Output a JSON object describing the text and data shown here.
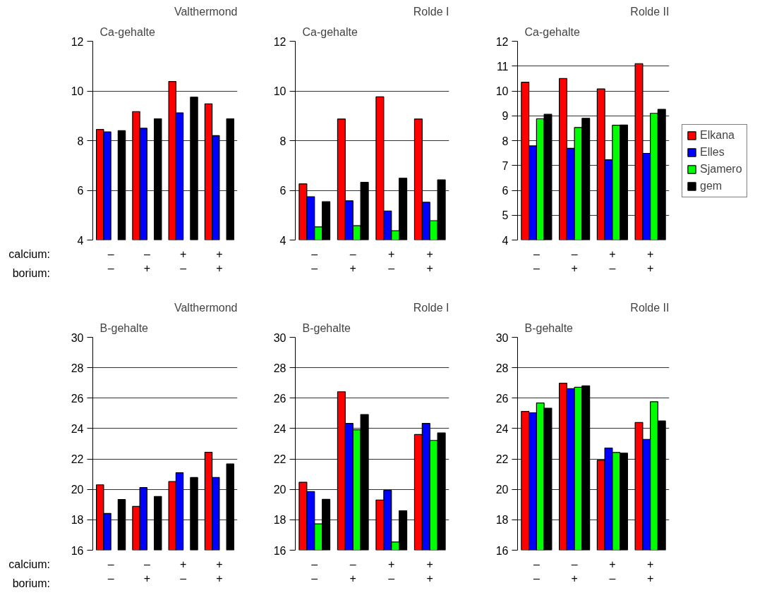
{
  "chart_data": [
    {
      "type": "bar",
      "title": "Valthermond",
      "ylabel": "Ca-gehalte",
      "categories": [
        "–\n–",
        "–\n+",
        "+\n–",
        "+\n+"
      ],
      "ylim": [
        4,
        12
      ],
      "yticks": [
        4,
        6,
        8,
        10,
        12
      ],
      "grid": "y",
      "annotations": [
        "calcium:",
        "borium:"
      ],
      "series": [
        {
          "color": "#ff0000",
          "values": [
            8.45,
            9.17,
            10.38,
            9.48
          ]
        },
        {
          "color": "#0000ff",
          "values": [
            8.35,
            8.5,
            9.12,
            8.2
          ]
        },
        {
          "color": "#00ff00",
          "values": [
            null,
            null,
            null,
            null
          ]
        },
        {
          "color": "#000000",
          "values": [
            8.4,
            8.88,
            9.75,
            8.88
          ]
        }
      ]
    },
    {
      "type": "bar",
      "title": "Rolde I",
      "ylabel": "Ca-gehalte",
      "categories": [
        "–\n–",
        "–\n+",
        "+\n–",
        "+\n+"
      ],
      "ylim": [
        4,
        12
      ],
      "yticks": [
        4,
        6,
        8,
        10,
        12
      ],
      "grid": "y",
      "series": [
        {
          "color": "#ff0000",
          "values": [
            6.26,
            8.87,
            9.76,
            8.87
          ]
        },
        {
          "color": "#0000ff",
          "values": [
            5.74,
            5.58,
            5.17,
            5.52
          ]
        },
        {
          "color": "#00ff00",
          "values": [
            4.53,
            4.58,
            4.37,
            4.78
          ]
        },
        {
          "color": "#000000",
          "values": [
            5.54,
            6.32,
            6.49,
            6.42
          ]
        }
      ]
    },
    {
      "type": "bar",
      "title": "Rolde II",
      "ylabel": "Ca-gehalte",
      "categories": [
        "–\n–",
        "–\n+",
        "+\n–",
        "+\n+"
      ],
      "ylim": [
        4,
        12
      ],
      "yticks": [
        4,
        5,
        6,
        7,
        8,
        9,
        10,
        11,
        12
      ],
      "grid": "y",
      "legend": "right",
      "series": [
        {
          "name": "Elkana",
          "color": "#ff0000",
          "values": [
            10.35,
            10.5,
            10.08,
            11.1
          ]
        },
        {
          "name": "Elles",
          "color": "#0000ff",
          "values": [
            7.79,
            7.69,
            7.23,
            7.49
          ]
        },
        {
          "name": "Sjamero",
          "color": "#00ff00",
          "values": [
            8.88,
            8.53,
            8.62,
            9.1
          ]
        },
        {
          "name": "gem",
          "color": "#000000",
          "values": [
            9.06,
            8.9,
            8.63,
            9.26
          ]
        }
      ]
    },
    {
      "type": "bar",
      "title": "Valthermond",
      "ylabel": "B-gehalte",
      "categories": [
        "–\n–",
        "–\n+",
        "+\n–",
        "+\n+"
      ],
      "ylim": [
        16,
        30
      ],
      "yticks": [
        16,
        18,
        20,
        22,
        24,
        26,
        28,
        30
      ],
      "grid": "y",
      "annotations": [
        "calcium:",
        "borium:"
      ],
      "series": [
        {
          "color": "#ff0000",
          "values": [
            20.3,
            18.88,
            20.51,
            22.44
          ]
        },
        {
          "color": "#0000ff",
          "values": [
            18.42,
            20.12,
            21.1,
            20.78
          ]
        },
        {
          "color": "#00ff00",
          "values": [
            null,
            null,
            null,
            null
          ]
        },
        {
          "color": "#000000",
          "values": [
            19.33,
            19.53,
            20.78,
            21.67
          ]
        }
      ]
    },
    {
      "type": "bar",
      "title": "Rolde I",
      "ylabel": "B-gehalte",
      "categories": [
        "–\n–",
        "–\n+",
        "+\n–",
        "+\n+"
      ],
      "ylim": [
        16,
        30
      ],
      "yticks": [
        16,
        18,
        20,
        22,
        24,
        26,
        28,
        30
      ],
      "grid": "y",
      "series": [
        {
          "color": "#ff0000",
          "values": [
            20.47,
            26.42,
            19.3,
            23.61
          ]
        },
        {
          "color": "#0000ff",
          "values": [
            19.85,
            24.34,
            19.93,
            24.34
          ]
        },
        {
          "color": "#00ff00",
          "values": [
            17.73,
            23.92,
            16.54,
            23.22
          ]
        },
        {
          "color": "#000000",
          "values": [
            19.34,
            24.92,
            18.59,
            23.71
          ]
        }
      ]
    },
    {
      "type": "bar",
      "title": "Rolde II",
      "ylabel": "B-gehalte",
      "categories": [
        "–\n–",
        "–\n+",
        "+\n–",
        "+\n+"
      ],
      "ylim": [
        16,
        30
      ],
      "yticks": [
        16,
        18,
        20,
        22,
        24,
        26,
        28,
        30
      ],
      "grid": "y",
      "series": [
        {
          "color": "#ff0000",
          "values": [
            25.13,
            26.98,
            21.92,
            24.4
          ]
        },
        {
          "color": "#0000ff",
          "values": [
            25.04,
            26.62,
            22.72,
            23.29
          ]
        },
        {
          "color": "#00ff00",
          "values": [
            25.68,
            26.71,
            22.43,
            25.76
          ]
        },
        {
          "color": "#000000",
          "values": [
            25.34,
            26.81,
            22.38,
            24.5
          ]
        }
      ]
    }
  ]
}
